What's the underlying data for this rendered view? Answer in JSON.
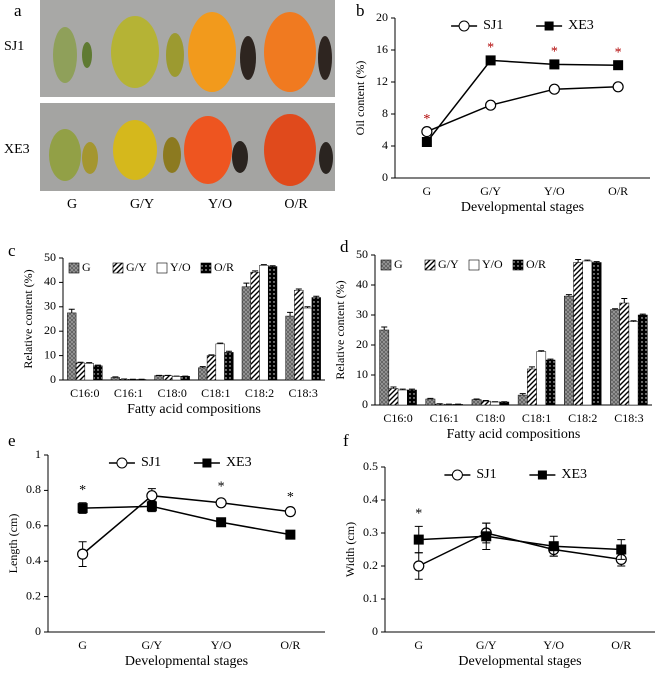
{
  "photo": {
    "panel_label": "a",
    "rows": [
      "SJ1",
      "XE3"
    ],
    "columns": [
      "G",
      "G/Y",
      "Y/O",
      "O/R"
    ]
  },
  "chart_data": [
    {
      "type": "line",
      "panel_label": "b",
      "x_label": "Developmental stages",
      "y_label": "Oil content (%)",
      "categories": [
        "G",
        "G/Y",
        "Y/O",
        "O/R"
      ],
      "ylim": [
        0,
        20
      ],
      "yticks": [
        0,
        4,
        8,
        12,
        16,
        20
      ],
      "significance": [
        "*",
        "*",
        "*",
        "*"
      ],
      "significance_color": "#b00000",
      "series": [
        {
          "name": "SJ1",
          "color": "#000000",
          "marker": "circle",
          "marker_fill": "#ffffff",
          "values": [
            5.8,
            9.1,
            11.1,
            11.4
          ]
        },
        {
          "name": "XE3",
          "color": "#000000",
          "marker": "square",
          "marker_fill": "#000000",
          "values": [
            4.5,
            14.7,
            14.2,
            14.1
          ]
        }
      ]
    },
    {
      "type": "bar",
      "panel_label": "c",
      "x_label": "Fatty acid compositions",
      "y_label": "Relative content (%)",
      "categories": [
        "C16:0",
        "C16:1",
        "C18:0",
        "C18:1",
        "C18:2",
        "C18:3"
      ],
      "ylim": [
        0,
        50
      ],
      "yticks": [
        0,
        10,
        20,
        30,
        40,
        50
      ],
      "series": [
        {
          "name": "G",
          "color": "#8c8c8c",
          "pattern": "crosshatch",
          "values": [
            27.5,
            1.0,
            1.8,
            5.0,
            38.2,
            26.2
          ],
          "errors": [
            1.5,
            0.3,
            0.1,
            0.5,
            1.5,
            1.5
          ]
        },
        {
          "name": "G/Y",
          "color": "#000000",
          "pattern": "diagonal",
          "values": [
            7.0,
            0.3,
            1.8,
            10.0,
            44.2,
            36.8
          ],
          "errors": [
            0.3,
            0.1,
            0.1,
            0.3,
            0.5,
            0.5
          ]
        },
        {
          "name": "Y/O",
          "color": "#ffffff",
          "pattern": "none",
          "values": [
            6.8,
            0.2,
            1.5,
            14.8,
            47.0,
            29.5
          ],
          "errors": [
            0.3,
            0.1,
            0.1,
            0.3,
            0.3,
            0.5
          ]
        },
        {
          "name": "O/R",
          "color": "#000000",
          "pattern": "dots",
          "values": [
            5.8,
            0.2,
            1.5,
            11.3,
            46.5,
            33.8
          ],
          "errors": [
            0.3,
            0.1,
            0.1,
            0.5,
            0.3,
            0.5
          ]
        }
      ]
    },
    {
      "type": "bar",
      "panel_label": "d",
      "x_label": "Fatty acid compositions",
      "y_label": "Relative content (%)",
      "categories": [
        "C16:0",
        "C16:1",
        "C18:0",
        "C18:1",
        "C18:2",
        "C18:3"
      ],
      "ylim": [
        0,
        50
      ],
      "yticks": [
        0,
        10,
        20,
        30,
        40,
        50
      ],
      "series": [
        {
          "name": "G",
          "color": "#8c8c8c",
          "pattern": "crosshatch",
          "values": [
            25.0,
            2.0,
            1.8,
            3.3,
            36.3,
            31.8
          ],
          "errors": [
            1.0,
            0.2,
            0.2,
            0.5,
            0.5,
            0.3
          ]
        },
        {
          "name": "G/Y",
          "color": "#000000",
          "pattern": "diagonal",
          "values": [
            5.5,
            0.3,
            1.3,
            12.0,
            47.5,
            34.0
          ],
          "errors": [
            0.5,
            0.1,
            0.2,
            0.7,
            1.0,
            1.5
          ]
        },
        {
          "name": "Y/O",
          "color": "#ffffff",
          "pattern": "none",
          "values": [
            5.0,
            0.2,
            1.0,
            17.8,
            48.0,
            27.8
          ],
          "errors": [
            0.3,
            0.1,
            0.1,
            0.3,
            0.3,
            0.3
          ]
        },
        {
          "name": "O/R",
          "color": "#000000",
          "pattern": "dots",
          "values": [
            5.0,
            0.2,
            1.0,
            15.0,
            47.5,
            30.0
          ],
          "errors": [
            0.3,
            0.1,
            0.1,
            0.3,
            0.3,
            0.3
          ]
        }
      ]
    },
    {
      "type": "line",
      "panel_label": "e",
      "x_label": "Developmental stages",
      "y_label": "Length (cm)",
      "categories": [
        "G",
        "G/Y",
        "Y/O",
        "O/R"
      ],
      "ylim": [
        0,
        1
      ],
      "yticks": [
        0,
        0.2,
        0.4,
        0.6,
        0.8,
        1
      ],
      "significance": [
        "*",
        null,
        "*",
        "*"
      ],
      "significance_color": "#000000",
      "series": [
        {
          "name": "SJ1",
          "color": "#000000",
          "marker": "circle",
          "marker_fill": "#ffffff",
          "values": [
            0.44,
            0.77,
            0.73,
            0.68
          ],
          "errors": [
            0.07,
            0.04,
            0.02,
            0.01
          ]
        },
        {
          "name": "XE3",
          "color": "#000000",
          "marker": "square",
          "marker_fill": "#000000",
          "values": [
            0.7,
            0.71,
            0.62,
            0.55
          ],
          "errors": [
            0.03,
            0.03,
            0.01,
            0.02
          ]
        }
      ]
    },
    {
      "type": "line",
      "panel_label": "f",
      "x_label": "Developmental stages",
      "y_label": "Width (cm)",
      "categories": [
        "G",
        "G/Y",
        "Y/O",
        "O/R"
      ],
      "ylim": [
        0,
        0.5
      ],
      "yticks": [
        0,
        0.1,
        0.2,
        0.3,
        0.4,
        0.5
      ],
      "significance": [
        "*",
        null,
        null,
        null
      ],
      "significance_color": "#000000",
      "series": [
        {
          "name": "SJ1",
          "color": "#000000",
          "marker": "circle",
          "marker_fill": "#ffffff",
          "values": [
            0.2,
            0.3,
            0.25,
            0.22
          ],
          "errors": [
            0.04,
            0.03,
            0.02,
            0.02
          ]
        },
        {
          "name": "XE3",
          "color": "#000000",
          "marker": "square",
          "marker_fill": "#000000",
          "values": [
            0.28,
            0.29,
            0.26,
            0.25
          ],
          "errors": [
            0.04,
            0.04,
            0.03,
            0.03
          ]
        }
      ]
    }
  ]
}
